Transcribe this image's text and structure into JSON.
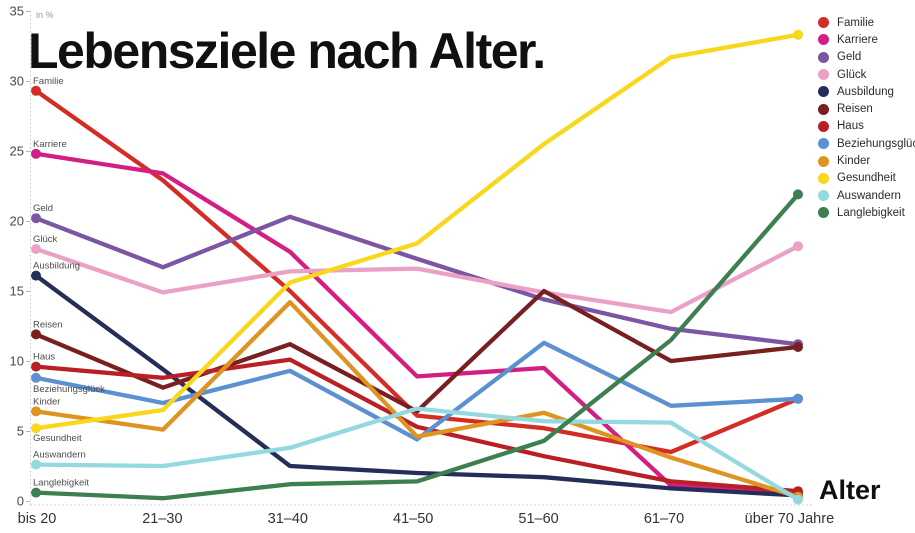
{
  "title": "Lebensziele nach Alter.",
  "y_axis": {
    "unit_note": "in %",
    "ticks": [
      0,
      5,
      10,
      15,
      20,
      25,
      30,
      35
    ]
  },
  "x_axis": {
    "label": "Alter",
    "categories": [
      "bis 20",
      "21–30",
      "31–40",
      "41–50",
      "51–60",
      "61–70",
      "über 70 Jahre"
    ]
  },
  "chart_data": {
    "type": "line",
    "categories": [
      "bis 20",
      "21–30",
      "31–40",
      "41–50",
      "51–60",
      "61–70",
      "über 70 Jahre"
    ],
    "title": "Lebensziele nach Alter.",
    "xlabel": "Alter",
    "ylabel": "in %",
    "ylim": [
      0,
      35
    ],
    "grid": false,
    "legend_position": "top-right",
    "series": [
      {
        "name": "Familie",
        "color": "#d42d26",
        "values": [
          29.3,
          22.9,
          15.0,
          6.1,
          5.2,
          3.5,
          7.3
        ]
      },
      {
        "name": "Karriere",
        "color": "#d31e83",
        "values": [
          24.8,
          23.4,
          17.8,
          8.9,
          9.5,
          1.1,
          0.5
        ]
      },
      {
        "name": "Geld",
        "color": "#7a56a3",
        "values": [
          20.2,
          16.7,
          20.3,
          17.3,
          14.4,
          12.3,
          11.2
        ]
      },
      {
        "name": "Glück",
        "color": "#eba0c6",
        "values": [
          18.0,
          14.9,
          16.4,
          16.6,
          14.9,
          13.5,
          18.2
        ]
      },
      {
        "name": "Ausbildung",
        "color": "#252d59",
        "values": [
          16.1,
          9.4,
          2.5,
          2.0,
          1.7,
          0.9,
          0.4
        ]
      },
      {
        "name": "Reisen",
        "color": "#77201f",
        "values": [
          11.9,
          8.1,
          11.2,
          6.4,
          15.0,
          10.0,
          11.0
        ]
      },
      {
        "name": "Haus",
        "color": "#b92025",
        "values": [
          9.6,
          8.8,
          10.1,
          5.3,
          3.2,
          1.4,
          0.7
        ]
      },
      {
        "name": "Beziehungsglück",
        "color": "#5b91d2",
        "values": [
          8.8,
          7.0,
          9.3,
          4.4,
          11.3,
          6.8,
          7.3
        ]
      },
      {
        "name": "Kinder",
        "color": "#df9422",
        "values": [
          6.4,
          5.1,
          14.2,
          4.6,
          6.3,
          3.1,
          0.3
        ]
      },
      {
        "name": "Gesundheit",
        "color": "#f8d71c",
        "values": [
          5.2,
          6.5,
          15.6,
          18.4,
          25.5,
          31.7,
          33.3
        ]
      },
      {
        "name": "Auswandern",
        "color": "#94d9df",
        "values": [
          2.6,
          2.5,
          3.8,
          6.6,
          5.7,
          5.6,
          0.1
        ]
      },
      {
        "name": "Langlebigkeit",
        "color": "#3d7f50",
        "values": [
          0.6,
          0.2,
          1.2,
          1.4,
          4.3,
          11.5,
          21.9
        ]
      }
    ]
  }
}
